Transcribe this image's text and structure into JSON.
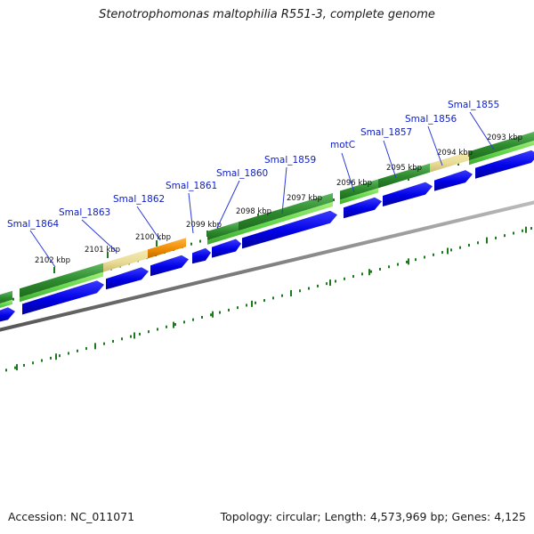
{
  "title": "Stenotrophomonas maltophilia R551-3, complete genome",
  "footer": {
    "accession": "Accession: NC_011071",
    "summary": "Topology: circular; Length: 4,573,969 bp; Genes: 4,125"
  },
  "colors": {
    "gene_label": "#1020c8",
    "cds_arrow": "#0000e6",
    "dark_green": "#2e8b2e",
    "light_green": "#5fd34a",
    "khaki": "#e9dc96",
    "orange": "#f08c00",
    "backbone": "#808080",
    "tick": "#1e7a1e"
  },
  "genes": [
    {
      "name": "Smal_1864",
      "icon": "gene-marker"
    },
    {
      "name": "Smal_1863",
      "icon": "gene-marker"
    },
    {
      "name": "Smal_1862",
      "icon": "gene-marker"
    },
    {
      "name": "Smal_1861",
      "icon": "gene-marker"
    },
    {
      "name": "Smal_1860",
      "icon": "gene-marker"
    },
    {
      "name": "Smal_1859",
      "icon": "gene-marker"
    },
    {
      "name": "motC",
      "icon": "gene-marker"
    },
    {
      "name": "Smal_1857",
      "icon": "gene-marker"
    },
    {
      "name": "Smal_1856",
      "icon": "gene-marker"
    },
    {
      "name": "Smal_1855",
      "icon": "gene-marker"
    }
  ],
  "ticks": [
    {
      "label": "2102 kbp"
    },
    {
      "label": "2101 kbp"
    },
    {
      "label": "2100 kbp"
    },
    {
      "label": "2099 kbp"
    },
    {
      "label": "2098 kbp"
    },
    {
      "label": "2097 kbp"
    },
    {
      "label": "2096 kbp"
    },
    {
      "label": "2095 kbp"
    },
    {
      "label": "2094 kbp"
    },
    {
      "label": "2093 kbp"
    }
  ]
}
